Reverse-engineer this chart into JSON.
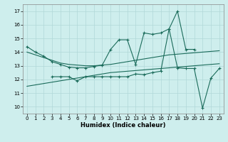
{
  "bg_color": "#ceeeed",
  "grid_color": "#b0d8d8",
  "line_color": "#1a6b5a",
  "xlabel": "Humidex (Indice chaleur)",
  "xlim": [
    -0.5,
    23.5
  ],
  "ylim": [
    9.5,
    17.5
  ],
  "yticks": [
    10,
    11,
    12,
    13,
    14,
    15,
    16,
    17
  ],
  "xticks": [
    0,
    1,
    2,
    3,
    4,
    5,
    6,
    7,
    8,
    9,
    10,
    11,
    12,
    13,
    14,
    15,
    16,
    17,
    18,
    19,
    20,
    21,
    22,
    23
  ],
  "series1_x": [
    0,
    1,
    2,
    3,
    4,
    5,
    6,
    7,
    8,
    9,
    10,
    11,
    12,
    13,
    14,
    15,
    16,
    17,
    18,
    19,
    20
  ],
  "series1_y": [
    14.4,
    14.0,
    13.7,
    13.3,
    13.1,
    12.9,
    12.85,
    12.85,
    12.95,
    13.05,
    14.2,
    14.9,
    14.9,
    13.1,
    15.4,
    15.3,
    15.4,
    15.7,
    17.0,
    14.2,
    14.2
  ],
  "series2_x": [
    0,
    1,
    2,
    3,
    4,
    5,
    6,
    7,
    8,
    9,
    10,
    11,
    12,
    13,
    14,
    15,
    16,
    17,
    18,
    19,
    20,
    21,
    22,
    23
  ],
  "series2_y": [
    14.0,
    13.8,
    13.6,
    13.4,
    13.2,
    13.1,
    13.05,
    13.0,
    13.0,
    13.05,
    13.1,
    13.2,
    13.3,
    13.4,
    13.5,
    13.6,
    13.7,
    13.8,
    13.85,
    13.9,
    13.95,
    14.0,
    14.05,
    14.1
  ],
  "series3_x": [
    0,
    1,
    2,
    3,
    4,
    5,
    6,
    7,
    8,
    9,
    10,
    11,
    12,
    13,
    14,
    15,
    16,
    17,
    18,
    19,
    20,
    21,
    22,
    23
  ],
  "series3_y": [
    11.5,
    11.6,
    11.7,
    11.8,
    11.9,
    12.0,
    12.1,
    12.2,
    12.3,
    12.4,
    12.5,
    12.55,
    12.6,
    12.65,
    12.7,
    12.75,
    12.8,
    12.85,
    12.9,
    12.95,
    13.0,
    13.05,
    13.1,
    13.15
  ],
  "series4_x": [
    3,
    4,
    5,
    6,
    7,
    8,
    9,
    10,
    11,
    12,
    13,
    14,
    15,
    16,
    17,
    18,
    19,
    20,
    21,
    22,
    23
  ],
  "series4_y": [
    12.2,
    12.2,
    12.2,
    11.9,
    12.2,
    12.2,
    12.2,
    12.2,
    12.2,
    12.2,
    12.4,
    12.35,
    12.5,
    12.6,
    15.7,
    12.85,
    12.8,
    12.8,
    9.9,
    12.1,
    12.8
  ]
}
